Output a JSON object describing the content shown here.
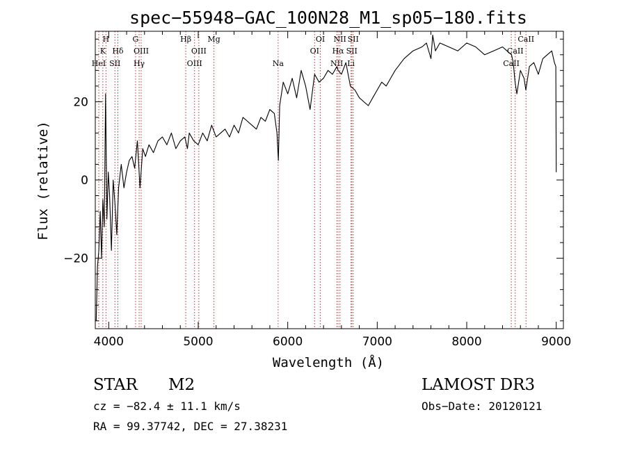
{
  "chart_data": {
    "type": "line",
    "title": "spec−55948−GAC_100N28_M1_sp05−180.fits",
    "xlabel": "Wavelength (Å)",
    "ylabel": "Flux (relative)",
    "xlim": [
      3850,
      9080
    ],
    "ylim": [
      -38,
      38
    ],
    "x_ticks": [
      4000,
      5000,
      6000,
      7000,
      8000,
      9000
    ],
    "x_tick_labels": [
      "4000",
      "5000",
      "6000",
      "7000",
      "8000",
      "9000"
    ],
    "y_ticks": [
      -20,
      0,
      20
    ],
    "y_tick_labels": [
      "−20",
      "0",
      "20"
    ],
    "y_minor_step": 4,
    "x_minor_step": 200,
    "spectrum": {
      "name": "flux",
      "x": [
        3860,
        3875,
        3890,
        3905,
        3920,
        3935,
        3950,
        3965,
        3980,
        3995,
        4010,
        4030,
        4050,
        4070,
        4090,
        4110,
        4140,
        4170,
        4200,
        4230,
        4260,
        4290,
        4320,
        4350,
        4380,
        4410,
        4450,
        4500,
        4550,
        4600,
        4650,
        4700,
        4750,
        4800,
        4850,
        4880,
        4900,
        4950,
        5000,
        5050,
        5100,
        5150,
        5200,
        5250,
        5300,
        5350,
        5400,
        5450,
        5500,
        5550,
        5600,
        5650,
        5700,
        5750,
        5800,
        5850,
        5880,
        5895,
        5910,
        5950,
        6000,
        6050,
        6100,
        6150,
        6200,
        6250,
        6300,
        6350,
        6400,
        6450,
        6500,
        6550,
        6563,
        6600,
        6650,
        6700,
        6750,
        6800,
        6850,
        6900,
        6950,
        7000,
        7050,
        7100,
        7150,
        7200,
        7300,
        7400,
        7500,
        7550,
        7600,
        7620,
        7650,
        7700,
        7800,
        7900,
        8000,
        8100,
        8200,
        8300,
        8400,
        8450,
        8500,
        8520,
        8540,
        8560,
        8600,
        8640,
        8660,
        8700,
        8750,
        8800,
        8850,
        8900,
        8950,
        8980,
        8995,
        9000
      ],
      "y": [
        -36,
        -22,
        -18,
        -8,
        -20,
        -5,
        -12,
        22,
        -10,
        2,
        -4,
        -18,
        0,
        -6,
        -14,
        -2,
        4,
        -2,
        2,
        5,
        6,
        3,
        10,
        -2,
        8,
        6,
        9,
        7,
        10,
        11,
        9,
        12,
        8,
        10,
        11,
        8,
        12,
        10,
        9,
        12,
        10,
        14,
        11,
        12,
        13,
        11,
        14,
        12,
        16,
        15,
        14,
        13,
        16,
        15,
        18,
        17,
        12,
        5,
        19,
        25,
        22,
        26,
        21,
        28,
        24,
        18,
        27,
        25,
        26,
        28,
        27,
        29,
        28,
        27,
        30,
        24,
        23,
        21,
        20,
        19,
        21,
        23,
        25,
        24,
        26,
        28,
        31,
        33,
        34,
        35,
        31,
        37,
        33,
        35,
        34,
        33,
        35,
        34,
        32,
        33,
        34,
        33,
        32,
        30,
        25,
        22,
        28,
        26,
        23,
        29,
        30,
        27,
        31,
        32,
        33,
        30,
        29,
        2
      ]
    },
    "lines": [
      {
        "x": 3889,
        "label": "HeI",
        "row": 3
      },
      {
        "x": 3934,
        "label": "K",
        "row": 2
      },
      {
        "x": 3969,
        "label": "H",
        "row": 1
      },
      {
        "x": 4069,
        "label": "SII",
        "row": 3
      },
      {
        "x": 4102,
        "label": "Hδ",
        "row": 2
      },
      {
        "x": 4300,
        "label": "G",
        "row": 1
      },
      {
        "x": 4340,
        "label": "Hγ",
        "row": 3
      },
      {
        "x": 4363,
        "label": "OIII",
        "row": 2
      },
      {
        "x": 4861,
        "label": "Hβ",
        "row": 1
      },
      {
        "x": 4959,
        "label": "OIII",
        "row": 3
      },
      {
        "x": 5007,
        "label": "OIII",
        "row": 2
      },
      {
        "x": 5175,
        "label": "Mg",
        "row": 1
      },
      {
        "x": 5893,
        "label": "Na",
        "row": 3
      },
      {
        "x": 6300,
        "label": "OI",
        "row": 2
      },
      {
        "x": 6364,
        "label": "OI",
        "row": 1
      },
      {
        "x": 6548,
        "label": "NII",
        "row": 3
      },
      {
        "x": 6563,
        "label": "Hα",
        "row": 2
      },
      {
        "x": 6583,
        "label": "NII",
        "row": 1
      },
      {
        "x": 6707,
        "label": "Li",
        "row": 3
      },
      {
        "x": 6716,
        "label": "SII",
        "row": 2
      },
      {
        "x": 6731,
        "label": "SII",
        "row": 1
      },
      {
        "x": 8498,
        "label": "CaII",
        "row": 3
      },
      {
        "x": 8542,
        "label": "CaII",
        "row": 2
      },
      {
        "x": 8662,
        "label": "CaII",
        "row": 1
      }
    ]
  },
  "footer": {
    "class_label": "STAR",
    "subclass_label": "M2",
    "redshift_text": "cz = −82.4 ± 11.1 km/s",
    "coords_text": "RA =  99.37742, DEC =  27.38231",
    "survey_label": "LAMOST DR3",
    "obs_date_text": "Obs−Date: 20120121"
  }
}
